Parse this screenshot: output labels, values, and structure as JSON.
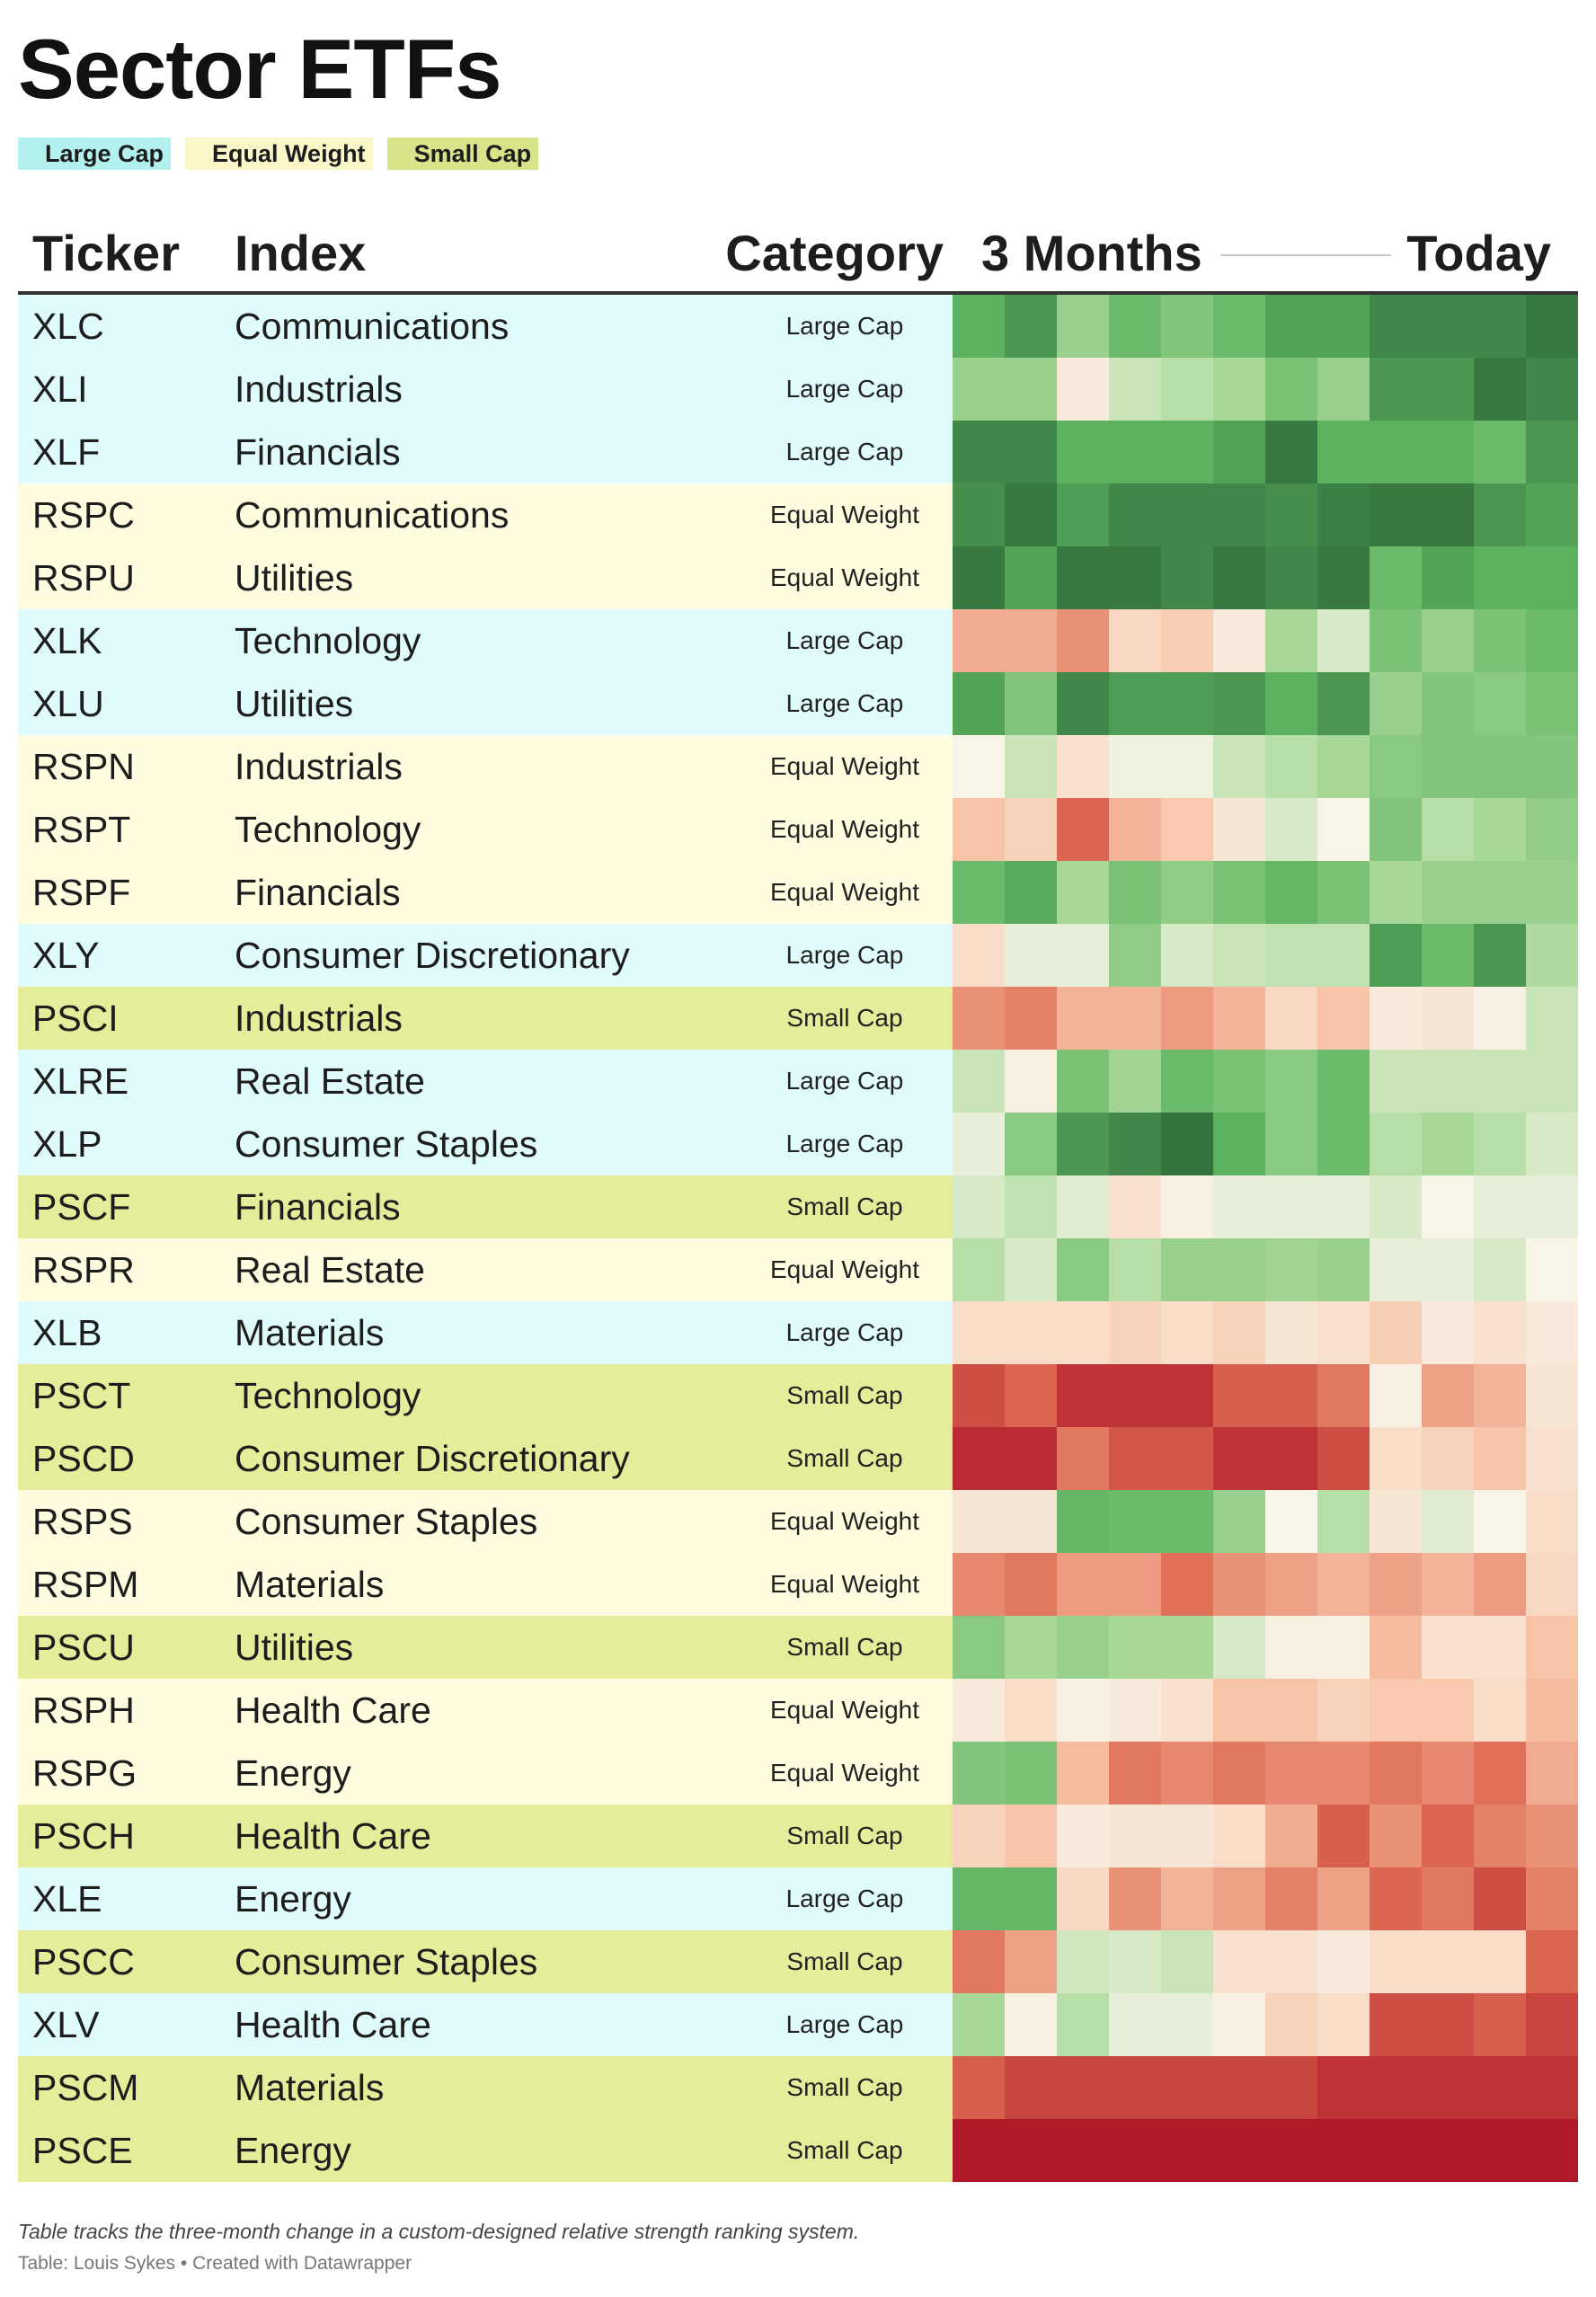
{
  "title": "Sector ETFs",
  "legend": [
    {
      "label": "Large Cap",
      "color": "#b3f0f0",
      "band": "#e0fbfb"
    },
    {
      "label": "Equal Weight",
      "color": "#fbf7c8",
      "band": "#fffce0"
    },
    {
      "label": "Small Cap",
      "color": "#d9e38a",
      "band": "#e6ed9a"
    }
  ],
  "header": {
    "ticker": "Ticker",
    "index": "Index",
    "category": "Category",
    "months": "3 Months",
    "today": "Today"
  },
  "color_scale": {
    "min": -3,
    "max": 3,
    "stops": [
      {
        "value": -3,
        "color": "#b01a28"
      },
      {
        "value": -2,
        "color": "#e07058"
      },
      {
        "value": -1,
        "color": "#f8c4a8"
      },
      {
        "value": 0,
        "color": "#f8f5e8"
      },
      {
        "value": 1,
        "color": "#a8d898"
      },
      {
        "value": 2,
        "color": "#5db260"
      },
      {
        "value": 3,
        "color": "#2f6b3a"
      }
    ]
  },
  "chart_data": {
    "type": "heatmap",
    "title": "Sector ETFs",
    "x_label_start": "3 Months",
    "x_label_end": "Today",
    "rows": [
      {
        "ticker": "XLC",
        "index": "Communications",
        "category": "Large Cap",
        "values": [
          2.0,
          2.4,
          1.2,
          1.8,
          1.5,
          1.8,
          2.2,
          2.2,
          2.6,
          2.6,
          2.6,
          2.8
        ]
      },
      {
        "ticker": "XLI",
        "index": "Industrials",
        "category": "Large Cap",
        "values": [
          1.2,
          1.2,
          -0.2,
          0.6,
          0.8,
          1.0,
          1.6,
          1.2,
          2.4,
          2.4,
          2.8,
          2.6
        ]
      },
      {
        "ticker": "XLF",
        "index": "Financials",
        "category": "Large Cap",
        "values": [
          2.6,
          2.6,
          2.0,
          2.0,
          2.0,
          2.2,
          2.8,
          2.0,
          2.0,
          2.0,
          1.8,
          2.4
        ]
      },
      {
        "ticker": "RSPC",
        "index": "Communications",
        "category": "Equal Weight",
        "values": [
          2.5,
          2.8,
          2.3,
          2.6,
          2.6,
          2.6,
          2.5,
          2.7,
          2.8,
          2.8,
          2.4,
          2.2
        ]
      },
      {
        "ticker": "RSPU",
        "index": "Utilities",
        "category": "Equal Weight",
        "values": [
          2.8,
          2.2,
          2.8,
          2.8,
          2.6,
          2.8,
          2.6,
          2.8,
          1.8,
          2.2,
          2.0,
          2.0
        ]
      },
      {
        "ticker": "XLK",
        "index": "Technology",
        "category": "Large Cap",
        "values": [
          -1.3,
          -1.3,
          -1.6,
          -0.6,
          -0.8,
          -0.2,
          1.0,
          0.4,
          1.6,
          1.2,
          1.6,
          1.8
        ]
      },
      {
        "ticker": "XLU",
        "index": "Utilities",
        "category": "Large Cap",
        "values": [
          2.2,
          1.5,
          2.6,
          2.3,
          2.3,
          2.4,
          2.0,
          2.4,
          1.2,
          1.5,
          1.4,
          1.6
        ]
      },
      {
        "ticker": "RSPN",
        "index": "Industrials",
        "category": "Equal Weight",
        "values": [
          0.0,
          0.6,
          -0.4,
          0.1,
          0.1,
          0.6,
          0.8,
          1.0,
          1.4,
          1.5,
          1.5,
          1.5
        ]
      },
      {
        "ticker": "RSPT",
        "index": "Technology",
        "category": "Equal Weight",
        "values": [
          -1.0,
          -0.7,
          -2.1,
          -1.2,
          -0.9,
          -0.3,
          0.4,
          0.0,
          1.5,
          0.8,
          1.0,
          1.3
        ]
      },
      {
        "ticker": "RSPF",
        "index": "Financials",
        "category": "Equal Weight",
        "values": [
          1.8,
          2.1,
          1.0,
          1.6,
          1.3,
          1.6,
          1.9,
          1.6,
          1.0,
          1.2,
          1.2,
          1.2
        ]
      },
      {
        "ticker": "XLY",
        "index": "Consumer Discretionary",
        "category": "Large Cap",
        "values": [
          -0.5,
          0.2,
          0.2,
          1.3,
          0.4,
          0.6,
          0.7,
          0.7,
          2.3,
          1.8,
          2.4,
          0.9
        ]
      },
      {
        "ticker": "PSCI",
        "index": "Industrials",
        "category": "Small Cap",
        "values": [
          -1.6,
          -1.8,
          -1.2,
          -1.2,
          -1.5,
          -1.2,
          -0.6,
          -1.0,
          -0.2,
          -0.3,
          -0.1,
          0.6
        ]
      },
      {
        "ticker": "XLRE",
        "index": "Real Estate",
        "category": "Large Cap",
        "values": [
          0.6,
          -0.1,
          1.6,
          1.1,
          1.8,
          1.6,
          1.4,
          1.8,
          0.6,
          0.6,
          0.6,
          0.6
        ]
      },
      {
        "ticker": "XLP",
        "index": "Consumer Staples",
        "category": "Large Cap",
        "values": [
          0.2,
          1.4,
          2.4,
          2.6,
          2.9,
          2.0,
          1.4,
          1.8,
          0.8,
          1.0,
          0.8,
          0.4
        ]
      },
      {
        "ticker": "PSCF",
        "index": "Financials",
        "category": "Small Cap",
        "values": [
          0.4,
          0.7,
          0.3,
          -0.4,
          -0.1,
          0.2,
          0.2,
          0.2,
          0.4,
          0.0,
          0.2,
          0.2
        ]
      },
      {
        "ticker": "RSPR",
        "index": "Real Estate",
        "category": "Equal Weight",
        "values": [
          0.8,
          0.4,
          1.4,
          0.8,
          1.2,
          1.2,
          1.1,
          1.2,
          0.2,
          0.2,
          0.4,
          0.0
        ]
      },
      {
        "ticker": "XLB",
        "index": "Materials",
        "category": "Large Cap",
        "values": [
          -0.5,
          -0.5,
          -0.5,
          -0.7,
          -0.5,
          -0.7,
          -0.3,
          -0.4,
          -0.8,
          -0.2,
          -0.4,
          -0.2
        ]
      },
      {
        "ticker": "PSCT",
        "index": "Technology",
        "category": "Small Cap",
        "values": [
          -2.4,
          -2.1,
          -2.7,
          -2.7,
          -2.7,
          -2.2,
          -2.2,
          -1.9,
          -0.1,
          -1.4,
          -1.2,
          -0.3
        ]
      },
      {
        "ticker": "PSCD",
        "index": "Consumer Discretionary",
        "category": "Small Cap",
        "values": [
          -2.8,
          -2.8,
          -1.9,
          -2.3,
          -2.3,
          -2.7,
          -2.7,
          -2.4,
          -0.5,
          -0.7,
          -1.0,
          -0.4
        ]
      },
      {
        "ticker": "RSPS",
        "index": "Consumer Staples",
        "category": "Equal Weight",
        "values": [
          -0.3,
          -0.3,
          1.9,
          1.8,
          1.8,
          1.2,
          0.0,
          0.8,
          -0.3,
          0.3,
          0.0,
          -0.5
        ]
      },
      {
        "ticker": "RSPM",
        "index": "Materials",
        "category": "Equal Weight",
        "values": [
          -1.7,
          -1.9,
          -1.5,
          -1.5,
          -2.0,
          -1.6,
          -1.4,
          -1.2,
          -1.4,
          -1.2,
          -1.5,
          -0.6
        ]
      },
      {
        "ticker": "PSCU",
        "index": "Utilities",
        "category": "Small Cap",
        "values": [
          1.4,
          1.0,
          1.2,
          1.0,
          1.0,
          0.4,
          -0.1,
          -0.1,
          -1.1,
          -0.4,
          -0.4,
          -1.0
        ]
      },
      {
        "ticker": "RSPH",
        "index": "Health Care",
        "category": "Equal Weight",
        "values": [
          -0.2,
          -0.5,
          -0.1,
          -0.2,
          -0.4,
          -1.0,
          -1.0,
          -0.7,
          -0.9,
          -0.9,
          -0.5,
          -1.1
        ]
      },
      {
        "ticker": "RSPG",
        "index": "Energy",
        "category": "Equal Weight",
        "values": [
          1.5,
          1.6,
          -1.1,
          -1.9,
          -1.7,
          -1.9,
          -1.7,
          -1.7,
          -1.9,
          -1.7,
          -2.0,
          -1.3
        ]
      },
      {
        "ticker": "PSCH",
        "index": "Health Care",
        "category": "Small Cap",
        "values": [
          -0.7,
          -1.0,
          -0.2,
          -0.3,
          -0.3,
          -0.5,
          -1.3,
          -2.2,
          -1.6,
          -2.1,
          -1.8,
          -1.6
        ]
      },
      {
        "ticker": "XLE",
        "index": "Energy",
        "category": "Large Cap",
        "values": [
          1.9,
          1.9,
          -0.6,
          -1.6,
          -1.2,
          -1.4,
          -1.8,
          -1.4,
          -2.1,
          -1.9,
          -2.4,
          -1.8
        ]
      },
      {
        "ticker": "PSCC",
        "index": "Consumer Staples",
        "category": "Small Cap",
        "values": [
          -1.9,
          -1.4,
          0.5,
          0.4,
          0.6,
          -0.4,
          -0.4,
          -0.2,
          -0.5,
          -0.5,
          -0.5,
          -2.1
        ]
      },
      {
        "ticker": "XLV",
        "index": "Health Care",
        "category": "Large Cap",
        "values": [
          1.0,
          -0.1,
          0.8,
          0.2,
          0.2,
          -0.1,
          -0.7,
          -0.5,
          -2.4,
          -2.4,
          -2.2,
          -2.5
        ]
      },
      {
        "ticker": "PSCM",
        "index": "Materials",
        "category": "Small Cap",
        "values": [
          -2.2,
          -2.5,
          -2.5,
          -2.5,
          -2.5,
          -2.5,
          -2.5,
          -2.7,
          -2.7,
          -2.7,
          -2.7,
          -2.7
        ]
      },
      {
        "ticker": "PSCE",
        "index": "Energy",
        "category": "Small Cap",
        "values": [
          -3.0,
          -3.0,
          -3.0,
          -3.0,
          -3.0,
          -3.0,
          -3.0,
          -3.0,
          -3.0,
          -3.0,
          -3.0,
          -3.0
        ]
      }
    ]
  },
  "footnote": "Table tracks the three-month change in a custom-designed relative strength ranking system.",
  "source": "Table: Louis Sykes • Created with Datawrapper"
}
